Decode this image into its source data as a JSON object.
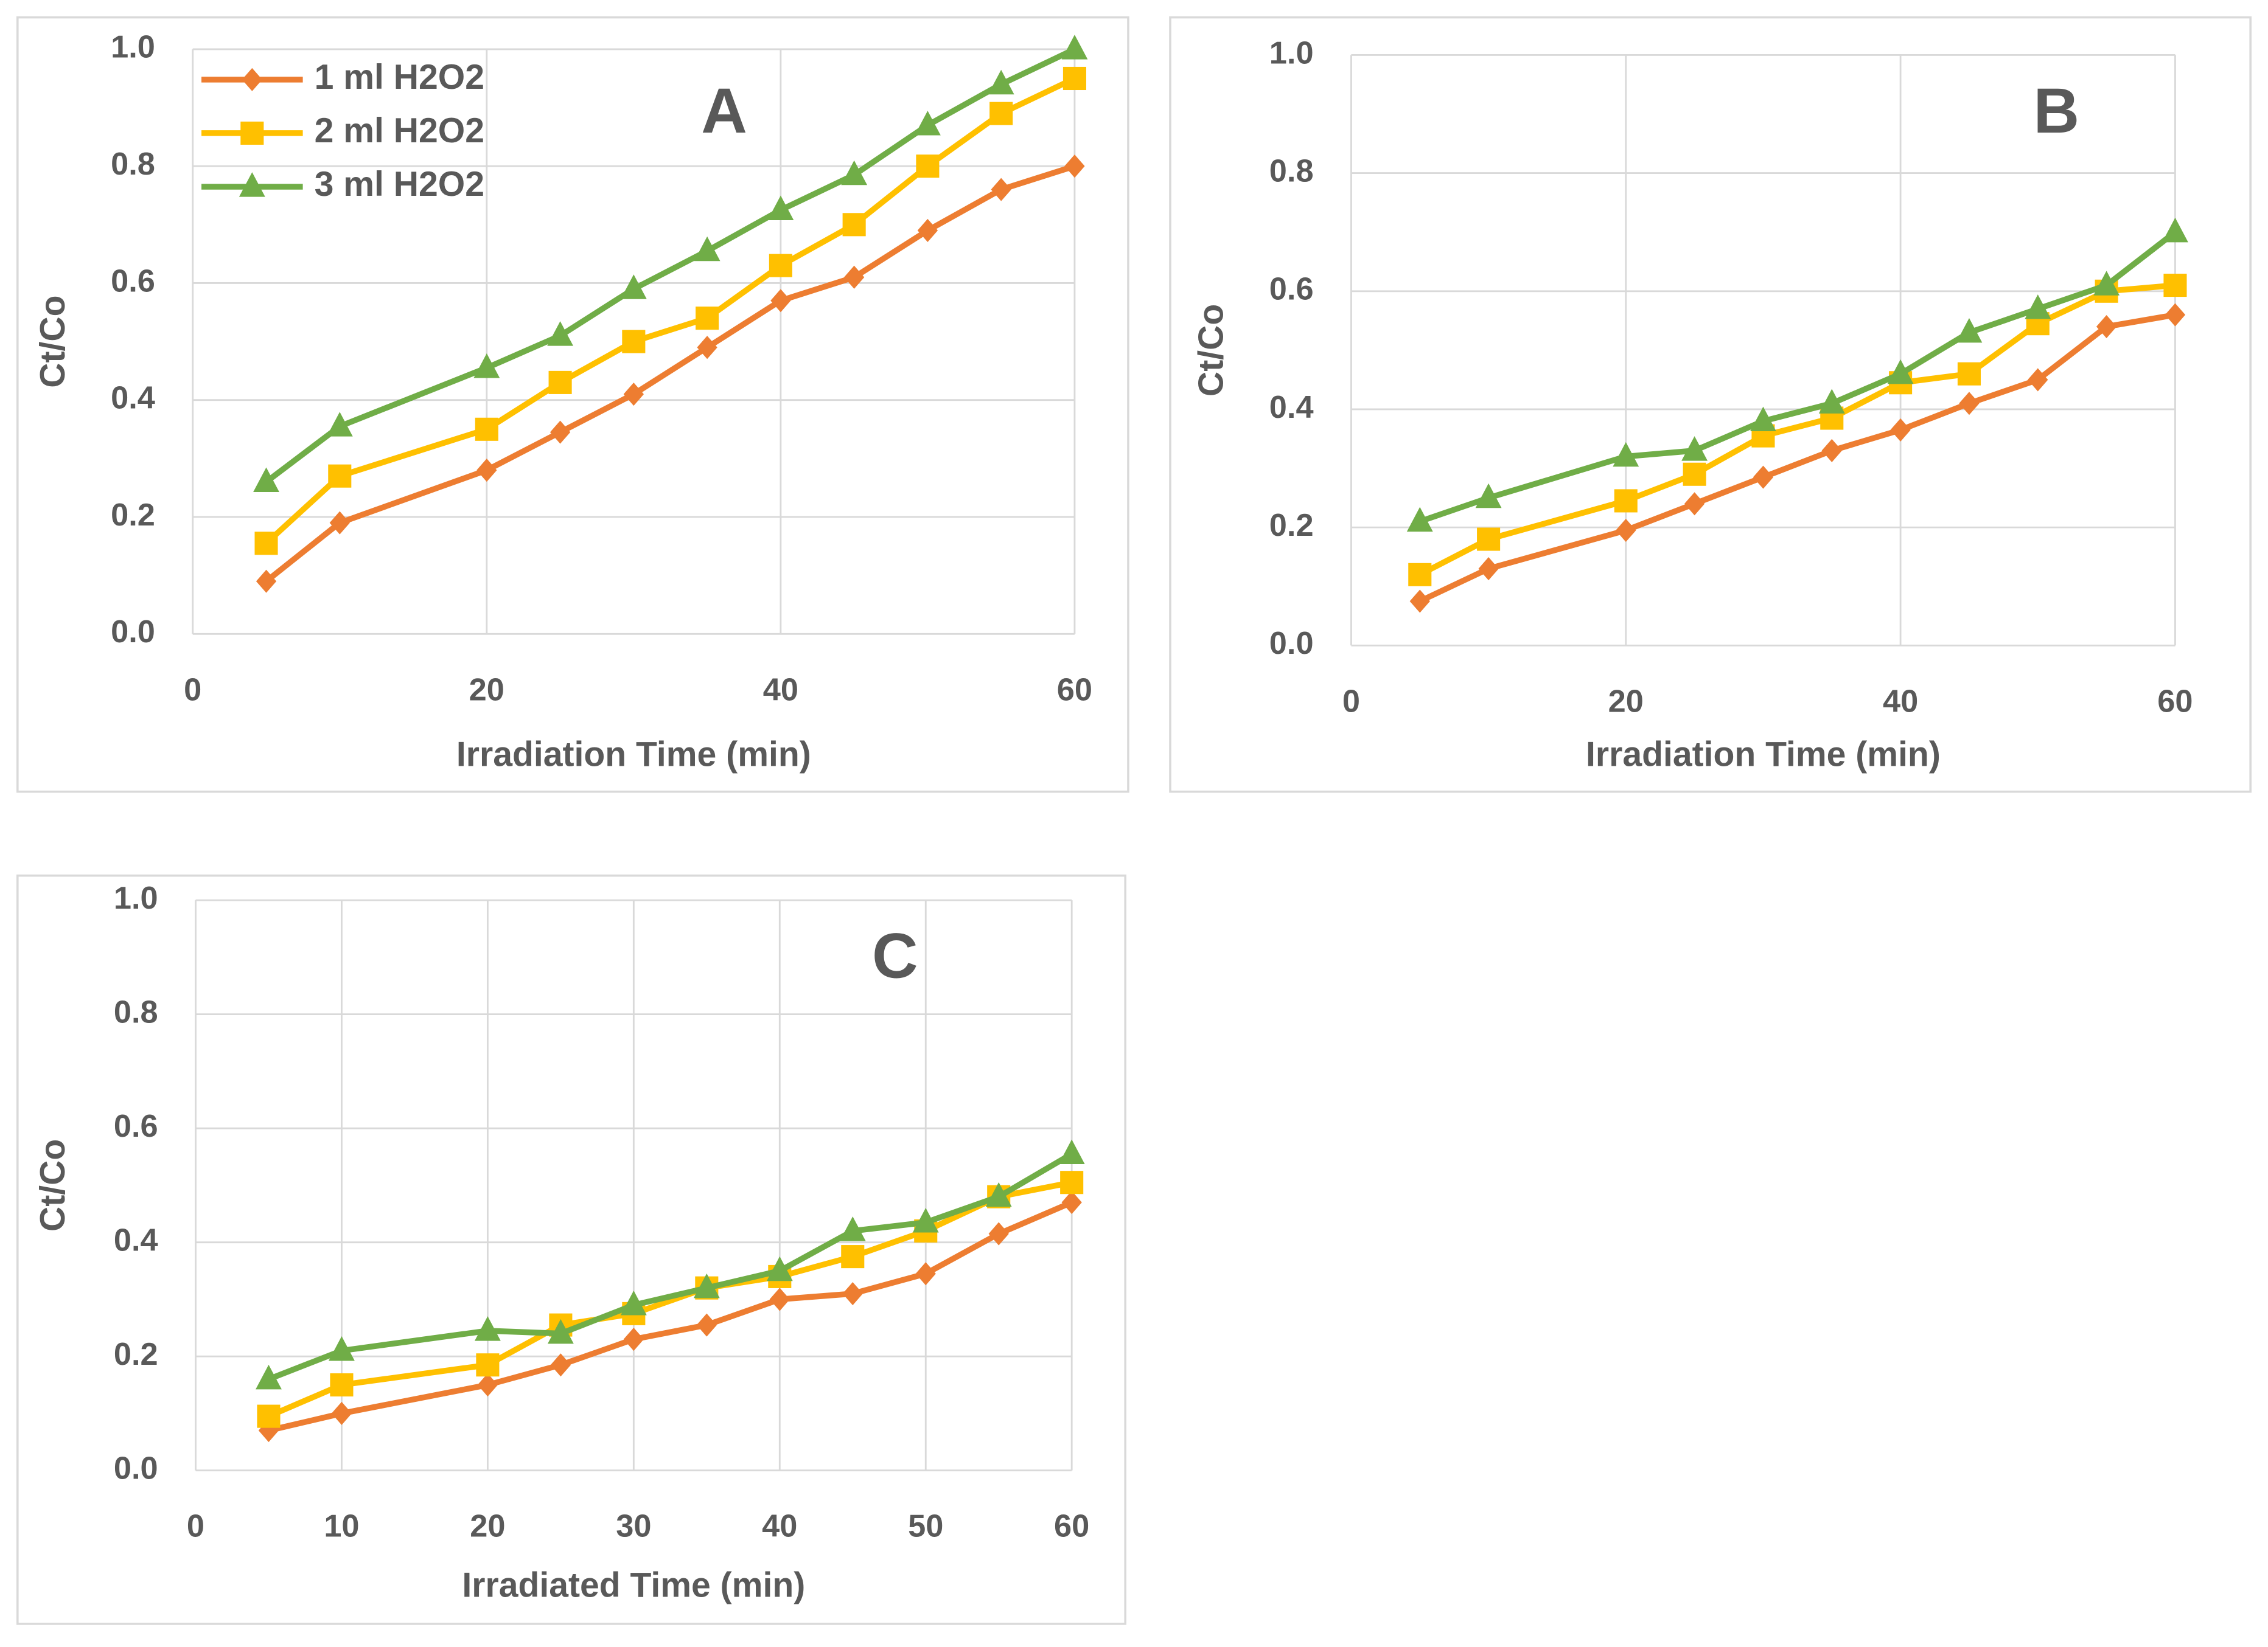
{
  "chart_data": [
    {
      "type": "line",
      "annotation": "A",
      "x_label": "Irradiation Time (min)",
      "y_label": "Ct/Co",
      "x": [
        5,
        10,
        20,
        25,
        30,
        35,
        40,
        45,
        50,
        55,
        60
      ],
      "series": [
        {
          "name": "1 ml H2O2",
          "color": "#ED7D31",
          "marker": "diamond",
          "values": [
            0.09,
            0.19,
            0.28,
            0.345,
            0.41,
            0.49,
            0.57,
            0.61,
            0.69,
            0.76,
            0.8
          ]
        },
        {
          "name": "2 ml H2O2",
          "color": "#FFC000",
          "marker": "square",
          "values": [
            0.155,
            0.27,
            0.35,
            0.43,
            0.5,
            0.54,
            0.63,
            0.7,
            0.8,
            0.89,
            0.95
          ]
        },
        {
          "name": "3 ml H2O2",
          "color": "#70AD47",
          "marker": "triangle",
          "values": [
            0.26,
            0.355,
            0.455,
            0.51,
            0.59,
            0.655,
            0.725,
            0.785,
            0.87,
            0.94,
            1.0
          ]
        }
      ],
      "xlim": [
        0,
        60
      ],
      "xticks": [
        0,
        20,
        40,
        60
      ],
      "ylim": [
        0,
        1
      ],
      "yticks": [
        {
          "value": 0,
          "label": "0.0"
        },
        0.2,
        0.4,
        0.6,
        0.8,
        {
          "value": 1,
          "label": "1.0"
        }
      ],
      "grid": true,
      "legend": "upper left"
    },
    {
      "type": "line",
      "annotation": "B",
      "x_label": "Irradiation Time (min)",
      "y_label": "Ct/Co",
      "x": [
        5,
        10,
        20,
        25,
        30,
        35,
        40,
        45,
        50,
        55,
        60
      ],
      "series": [
        {
          "color": "#ED7D31",
          "marker": "diamond",
          "values": [
            0.075,
            0.13,
            0.195,
            0.24,
            0.285,
            0.33,
            0.365,
            0.41,
            0.45,
            0.54,
            0.56
          ]
        },
        {
          "color": "#FFC000",
          "marker": "square",
          "values": [
            0.12,
            0.18,
            0.245,
            0.29,
            0.355,
            0.385,
            0.445,
            0.46,
            0.545,
            0.6,
            0.61
          ]
        },
        {
          "color": "#70AD47",
          "marker": "triangle",
          "values": [
            0.21,
            0.25,
            0.32,
            0.33,
            0.38,
            0.41,
            0.46,
            0.53,
            0.57,
            0.61,
            0.7
          ]
        }
      ],
      "xlim": [
        0,
        60
      ],
      "xticks": [
        0,
        20,
        40,
        60
      ],
      "ylim": [
        0,
        1
      ],
      "yticks": [
        {
          "value": 0,
          "label": "0.0"
        },
        0.2,
        0.4,
        0.6,
        0.8,
        {
          "value": 1,
          "label": "1.0"
        }
      ],
      "grid": true,
      "legend": false
    },
    {
      "type": "line",
      "annotation": "C",
      "x_label": "Irradiated Time (min)",
      "y_label": "Ct/Co",
      "x": [
        5,
        10,
        20,
        25,
        30,
        35,
        40,
        45,
        50,
        55,
        60
      ],
      "series": [
        {
          "color": "#ED7D31",
          "marker": "diamond",
          "values": [
            0.07,
            0.1,
            0.15,
            0.185,
            0.23,
            0.255,
            0.3,
            0.31,
            0.345,
            0.415,
            0.47
          ]
        },
        {
          "color": "#FFC000",
          "marker": "square",
          "values": [
            0.095,
            0.15,
            0.185,
            0.255,
            0.275,
            0.32,
            0.34,
            0.375,
            0.42,
            0.48,
            0.505
          ]
        },
        {
          "color": "#70AD47",
          "marker": "triangle",
          "values": [
            0.16,
            0.21,
            0.245,
            0.24,
            0.29,
            0.32,
            0.35,
            0.42,
            0.435,
            0.48,
            0.555
          ]
        }
      ],
      "xlim": [
        0,
        60
      ],
      "xticks": [
        0,
        10,
        20,
        30,
        40,
        50,
        60
      ],
      "ylim": [
        0,
        1
      ],
      "yticks": [
        {
          "value": 0,
          "label": "0.0"
        },
        0.2,
        0.4,
        0.6,
        0.8,
        {
          "value": 1,
          "label": "1.0"
        }
      ],
      "grid": true,
      "legend": false
    }
  ]
}
